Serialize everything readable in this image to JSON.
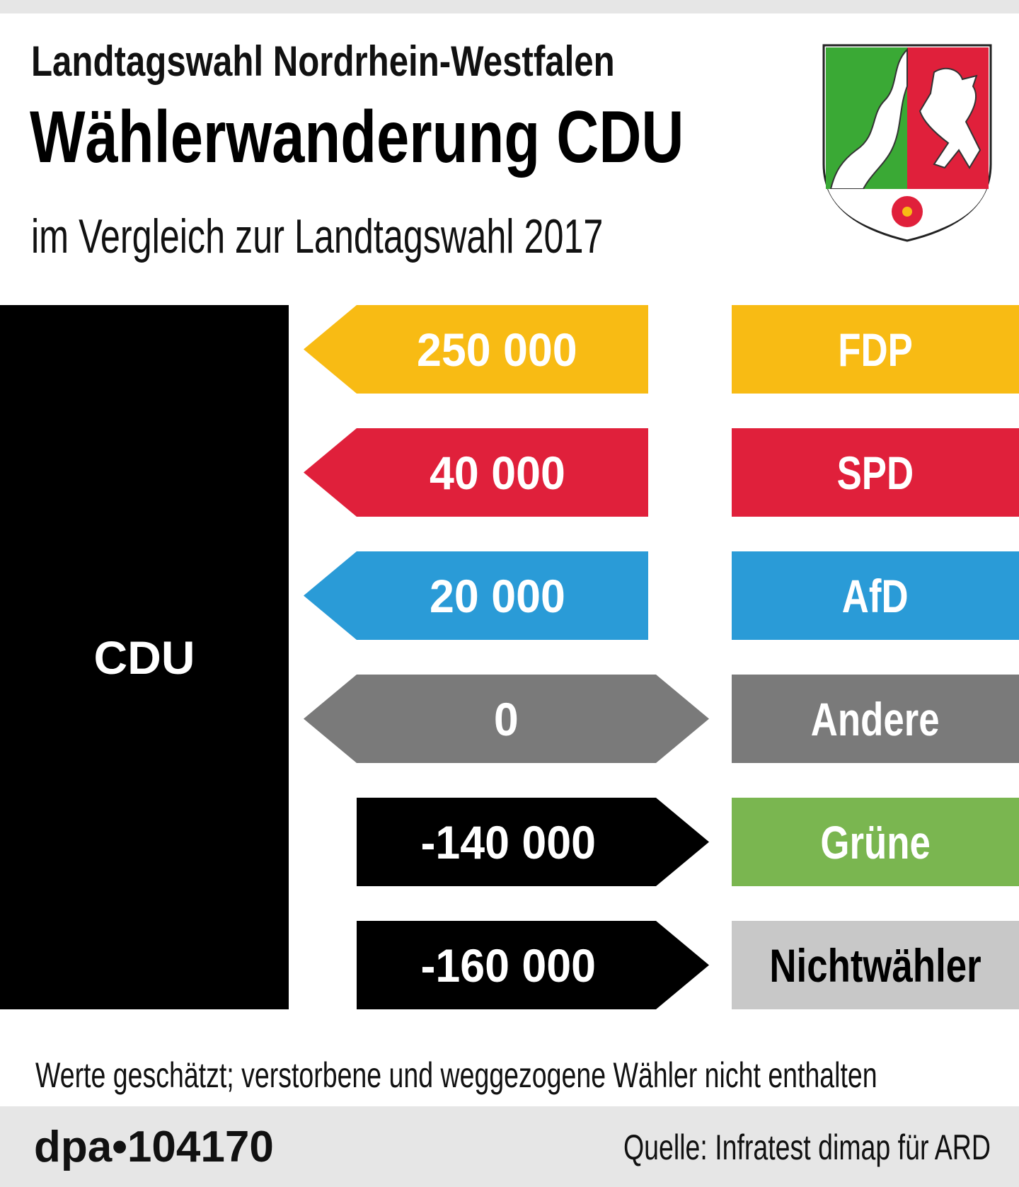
{
  "header": {
    "title": "Landtagswahl Nordrhein-Westfalen",
    "headline": "Wählerwanderung CDU",
    "subtitle": "im Vergleich zur Landtagswahl 2017"
  },
  "chart_data": {
    "type": "bar",
    "title": "Wählerwanderung CDU",
    "subtitle": "im Vergleich zur Landtagswahl 2017",
    "source_party": "CDU",
    "categories": [
      "FDP",
      "SPD",
      "AfD",
      "Andere",
      "Grüne",
      "Nichtwähler"
    ],
    "values": [
      250000,
      40000,
      20000,
      0,
      -140000,
      -160000
    ],
    "value_labels": [
      "250 000",
      "40 000",
      "20 000",
      "0",
      "-140 000",
      "-160 000"
    ],
    "colors": [
      "#f8bb14",
      "#e0203b",
      "#2a9bd7",
      "#7a7a7a",
      "#7ab650",
      "#c8c8c8"
    ]
  },
  "footer": {
    "note": "Werte geschätzt; verstorbene und weggezogene Wähler nicht enthalten",
    "id": "dpa•104170",
    "source": "Quelle: Infratest dimap für ARD"
  }
}
